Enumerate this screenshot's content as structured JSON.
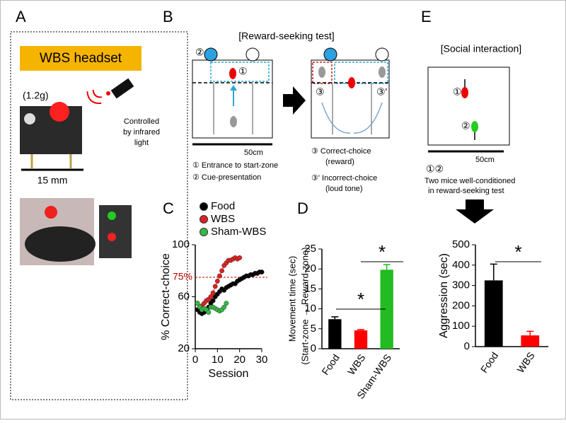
{
  "panels": {
    "A": {
      "letter": "A",
      "headset_label": "WBS headset",
      "weight": "(1.2g)",
      "control": [
        "Controlled",
        "by infrared",
        "light"
      ],
      "scale": "15 mm"
    },
    "B": {
      "letter": "B",
      "title": "[Reward-seeking test]",
      "scale": "50cm",
      "entrance": "①",
      "cue": "②",
      "correct": "③",
      "incorrect": "③'",
      "legend": [
        "① Entrance to start-zone",
        "② Cue-presentation",
        "③ Correct-choice",
        "(reward)",
        "③' Incorrect-choice",
        "(loud tone)"
      ]
    },
    "C": {
      "letter": "C"
    },
    "D": {
      "letter": "D"
    },
    "E": {
      "letter": "E",
      "title": "[Social interaction]",
      "scale": "50cm",
      "markers": "①②",
      "note": [
        "Two mice well-conditioned",
        "in reward-seeking test"
      ]
    }
  },
  "chart_data": [
    {
      "type": "line",
      "xlabel": "Session",
      "ylabel": "% Correct-choice",
      "x": [
        1,
        2,
        3,
        4,
        5,
        6,
        7,
        8,
        9,
        10,
        11,
        12,
        13,
        14,
        15,
        16,
        17,
        18,
        19,
        20,
        21,
        22,
        23,
        24,
        25,
        26,
        27,
        28,
        29,
        30
      ],
      "series": [
        {
          "name": "Food",
          "color": "#000000",
          "values": [
            50,
            48,
            47,
            48,
            50,
            52,
            55,
            57,
            60,
            62,
            64,
            66,
            65,
            67,
            68,
            69,
            70,
            70,
            72,
            73,
            74,
            75,
            76,
            76,
            77,
            77,
            78,
            78,
            79,
            79
          ]
        },
        {
          "name": "WBS",
          "color": "#e02020",
          "values": [
            55,
            52,
            53,
            55,
            57,
            58,
            60,
            63,
            68,
            72,
            76,
            80,
            84,
            86,
            88,
            88,
            89,
            90,
            89,
            90,
            null,
            null,
            null,
            null,
            null,
            null,
            null,
            null,
            null,
            null
          ]
        },
        {
          "name": "Sham-WBS",
          "color": "#33bb44",
          "values": [
            55,
            52,
            50,
            51,
            50,
            48,
            52,
            52,
            51,
            50,
            49,
            50,
            52,
            55,
            null,
            null,
            null,
            null,
            null,
            null,
            null,
            null,
            null,
            null,
            null,
            null,
            null,
            null,
            null,
            null
          ]
        }
      ],
      "xlim": [
        0,
        30
      ],
      "xticks": [
        0,
        10,
        20,
        30
      ],
      "ylim": [
        20,
        100
      ],
      "yticks": [
        20,
        60,
        100
      ],
      "reference_line": {
        "value": 75,
        "label": "75%",
        "color": "#c00000"
      }
    },
    {
      "type": "bar",
      "ylabel": "Movement time (sec)",
      "ylabel2": "(Start-zone → Reward-zone)",
      "categories": [
        "Food",
        "WBS",
        "Sham-WBS"
      ],
      "values": [
        7.4,
        4.6,
        19.8
      ],
      "errors": [
        0.6,
        0.2,
        1.3
      ],
      "colors": [
        "#000000",
        "#ff0000",
        "#22bb22"
      ],
      "ylim": [
        0,
        25
      ],
      "yticks": [
        0,
        5,
        10,
        15,
        20,
        25
      ],
      "significance": [
        "*",
        "*"
      ]
    },
    {
      "type": "bar",
      "ylabel": "Aggression (sec)",
      "categories": [
        "Food",
        "WBS"
      ],
      "values": [
        325,
        55
      ],
      "errors": [
        80,
        20
      ],
      "colors": [
        "#000000",
        "#ff0000"
      ],
      "ylim": [
        0,
        500
      ],
      "yticks": [
        0,
        100,
        200,
        300,
        400,
        500
      ],
      "significance": [
        "*"
      ]
    }
  ]
}
